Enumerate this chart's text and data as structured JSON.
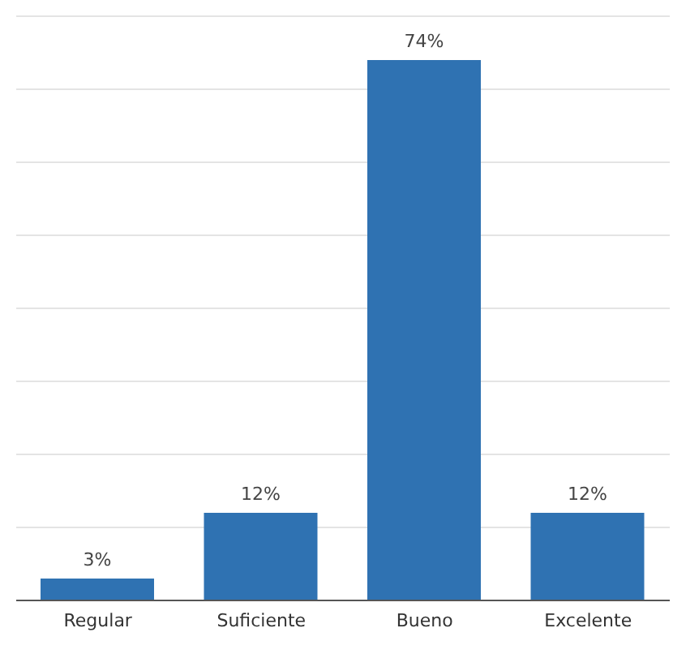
{
  "chart_data": {
    "type": "bar",
    "categories": [
      "Regular",
      "Suficiente",
      "Bueno",
      "Excelente"
    ],
    "values": [
      3,
      12,
      74,
      12
    ],
    "value_labels": [
      "3%",
      "12%",
      "74%",
      "12%"
    ],
    "color": "#2f72b2",
    "grid": "y",
    "tick_labels": "x"
  }
}
